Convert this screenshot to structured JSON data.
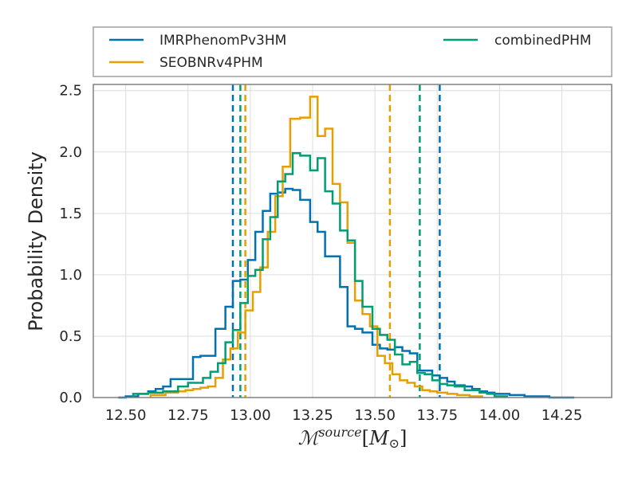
{
  "chart_data": {
    "type": "histogram",
    "ylabel": "Probability Density",
    "xlabel_parts": {
      "main": "ℳ",
      "sup": "source",
      "bracket_open": "[",
      "unit": "M",
      "unit_sub": "⊙",
      "bracket_close": "]"
    },
    "xlim": [
      12.37,
      14.45
    ],
    "ylim": [
      0,
      2.55
    ],
    "xticks": [
      12.5,
      12.75,
      13.0,
      13.25,
      13.5,
      13.75,
      14.0,
      14.25
    ],
    "xtick_labels": [
      "12.50",
      "12.75",
      "13.00",
      "13.25",
      "13.50",
      "13.75",
      "14.00",
      "14.25"
    ],
    "yticks": [
      0.0,
      0.5,
      1.0,
      1.5,
      2.0,
      2.5
    ],
    "ytick_labels": [
      "0.0",
      "0.5",
      "1.0",
      "1.5",
      "2.0",
      "2.5"
    ],
    "grid": true,
    "legend_placement": "top, above plot, two columns",
    "series": [
      {
        "name": "IMRPhenomPv3HM",
        "color": "#0072b2",
        "bin_edges": [
          12.47,
          12.5,
          12.55,
          12.59,
          12.62,
          12.65,
          12.68,
          12.71,
          12.74,
          12.77,
          12.8,
          12.83,
          12.86,
          12.9,
          12.93,
          12.96,
          12.99,
          13.02,
          13.05,
          13.08,
          13.11,
          13.14,
          13.17,
          13.2,
          13.24,
          13.27,
          13.3,
          13.33,
          13.36,
          13.39,
          13.42,
          13.45,
          13.49,
          13.52,
          13.55,
          13.58,
          13.61,
          13.64,
          13.67,
          13.7,
          13.73,
          13.76,
          13.79,
          13.82,
          13.86,
          13.89,
          13.92,
          13.95,
          13.98,
          14.01,
          14.04,
          14.07,
          14.1,
          14.15,
          14.2,
          14.25,
          14.3
        ],
        "densities": [
          0.0,
          0.01,
          0.03,
          0.05,
          0.07,
          0.09,
          0.15,
          0.15,
          0.15,
          0.33,
          0.34,
          0.34,
          0.56,
          0.74,
          0.95,
          0.96,
          1.12,
          1.35,
          1.52,
          1.66,
          1.67,
          1.7,
          1.69,
          1.61,
          1.43,
          1.35,
          1.15,
          1.15,
          0.9,
          0.58,
          0.56,
          0.53,
          0.43,
          0.4,
          0.39,
          0.41,
          0.38,
          0.36,
          0.22,
          0.22,
          0.18,
          0.16,
          0.13,
          0.1,
          0.09,
          0.07,
          0.05,
          0.04,
          0.03,
          0.03,
          0.02,
          0.02,
          0.01,
          0.01,
          0.0,
          0.0
        ],
        "intervals": [
          12.93,
          13.76
        ]
      },
      {
        "name": "SEOBNRv4PHM",
        "color": "#e69f00",
        "bin_edges": [
          12.6,
          12.66,
          12.71,
          12.74,
          12.77,
          12.8,
          12.83,
          12.86,
          12.89,
          12.92,
          12.95,
          12.98,
          13.01,
          13.04,
          13.07,
          13.1,
          13.13,
          13.16,
          13.2,
          13.24,
          13.27,
          13.3,
          13.33,
          13.36,
          13.39,
          13.42,
          13.45,
          13.48,
          13.51,
          13.54,
          13.57,
          13.6,
          13.63,
          13.66,
          13.69,
          13.72,
          13.75,
          13.79,
          13.83,
          13.88,
          13.93
        ],
        "densities": [
          0.02,
          0.04,
          0.05,
          0.06,
          0.07,
          0.08,
          0.09,
          0.16,
          0.31,
          0.4,
          0.53,
          0.71,
          0.86,
          1.06,
          1.35,
          1.64,
          1.88,
          2.27,
          2.28,
          2.45,
          2.13,
          2.19,
          1.74,
          1.59,
          1.26,
          0.79,
          0.68,
          0.58,
          0.34,
          0.28,
          0.19,
          0.14,
          0.12,
          0.09,
          0.06,
          0.05,
          0.04,
          0.03,
          0.02,
          0.01
        ],
        "intervals": [
          12.98,
          13.56
        ]
      },
      {
        "name": "combinedPHM",
        "color": "#009e73",
        "bin_edges": [
          12.53,
          12.59,
          12.65,
          12.71,
          12.75,
          12.78,
          12.81,
          12.84,
          12.87,
          12.9,
          12.93,
          12.96,
          12.99,
          13.02,
          13.05,
          13.08,
          13.11,
          13.14,
          13.17,
          13.2,
          13.24,
          13.27,
          13.3,
          13.33,
          13.36,
          13.39,
          13.42,
          13.45,
          13.49,
          13.52,
          13.55,
          13.58,
          13.61,
          13.64,
          13.67,
          13.7,
          13.73,
          13.76,
          13.79,
          13.82,
          13.86,
          13.89,
          13.92,
          13.95,
          13.98,
          14.03
        ],
        "densities": [
          0.03,
          0.04,
          0.05,
          0.09,
          0.12,
          0.12,
          0.16,
          0.21,
          0.28,
          0.45,
          0.55,
          0.77,
          0.99,
          1.04,
          1.29,
          1.47,
          1.76,
          1.82,
          1.99,
          1.97,
          1.85,
          1.95,
          1.68,
          1.58,
          1.36,
          1.28,
          0.95,
          0.74,
          0.56,
          0.51,
          0.47,
          0.35,
          0.27,
          0.29,
          0.2,
          0.19,
          0.14,
          0.11,
          0.1,
          0.09,
          0.06,
          0.06,
          0.04,
          0.03,
          0.01
        ],
        "intervals": [
          12.96,
          13.68
        ]
      }
    ]
  }
}
